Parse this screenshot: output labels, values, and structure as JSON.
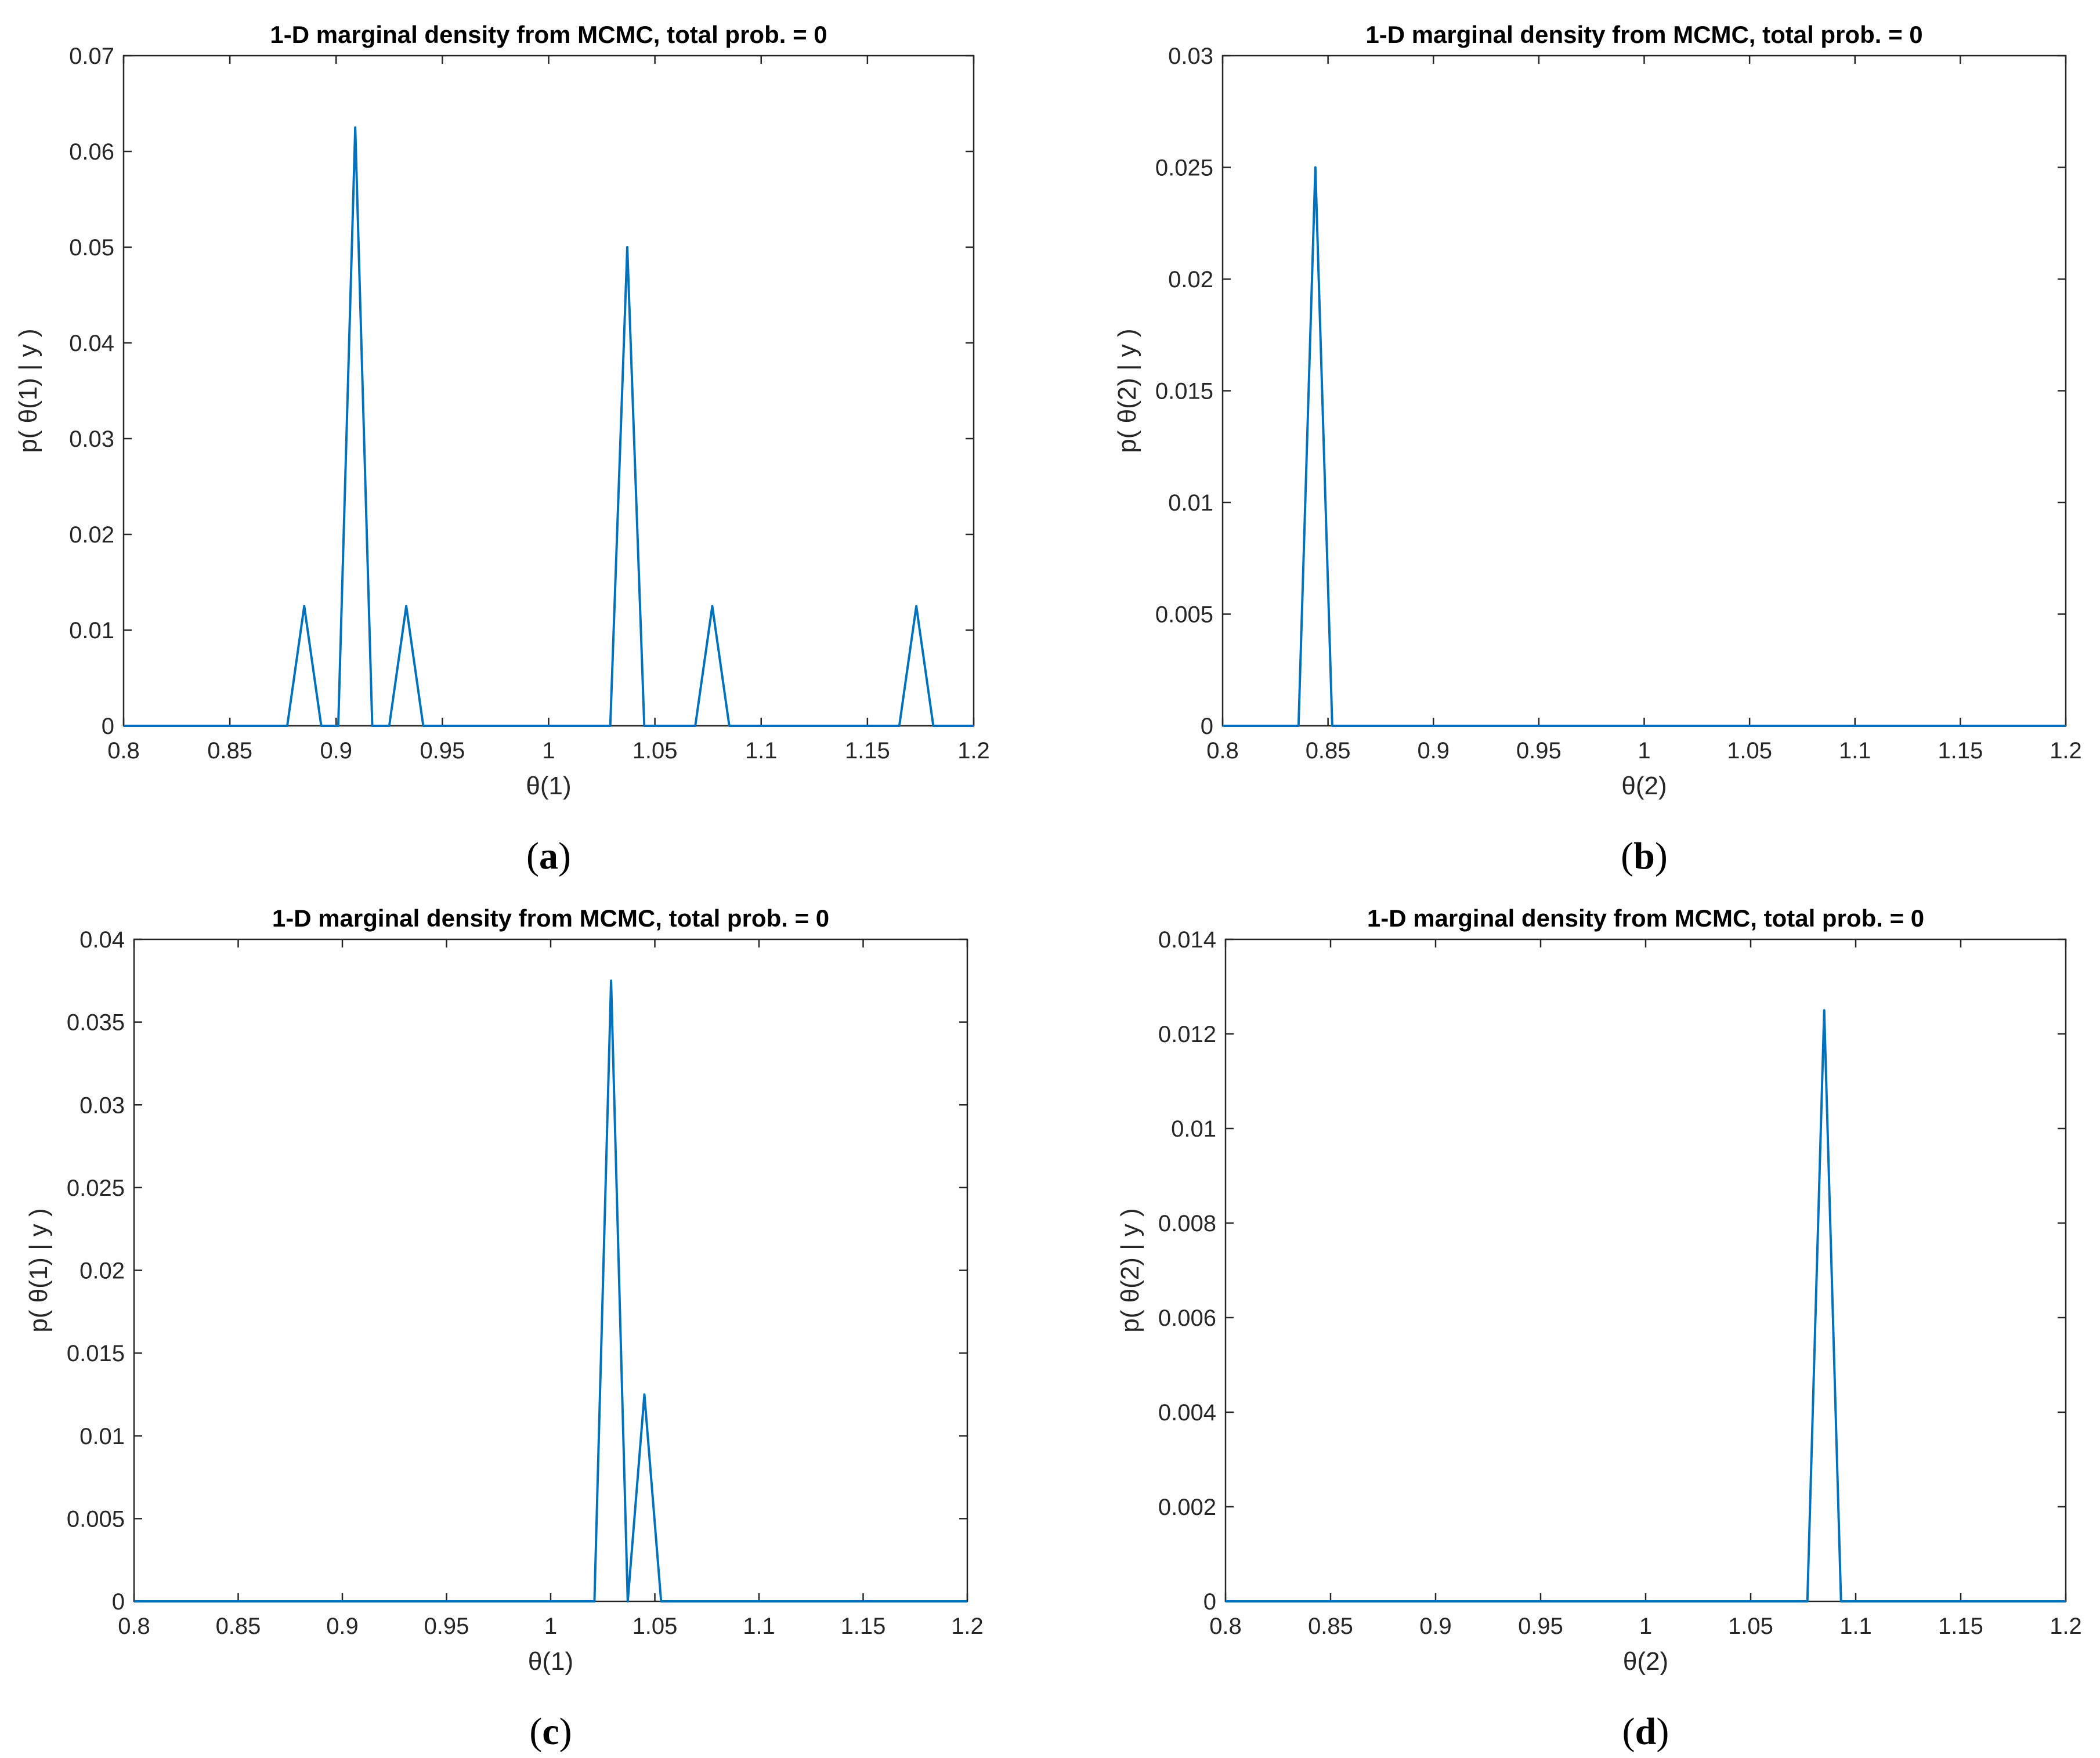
{
  "chart_data": [
    {
      "type": "line",
      "panel_label": "a",
      "title": "1-D marginal density from MCMC, total prob. = 0",
      "xlabel": "θ(1)",
      "ylabel": "p( θ(1) | y )",
      "xlim": [
        0.8,
        1.2
      ],
      "ylim": [
        0,
        0.07
      ],
      "xticks": [
        0.8,
        0.85,
        0.9,
        0.95,
        1,
        1.05,
        1.1,
        1.15,
        1.2
      ],
      "xtick_labels": [
        "0.8",
        "0.85",
        "0.9",
        "0.95",
        "1",
        "1.05",
        "1.1",
        "1.15",
        "1.2"
      ],
      "yticks": [
        0,
        0.01,
        0.02,
        0.03,
        0.04,
        0.05,
        0.06,
        0.07
      ],
      "ytick_labels": [
        "0",
        "0.01",
        "0.02",
        "0.03",
        "0.04",
        "0.05",
        "0.06",
        "0.07"
      ],
      "color": "#0072BD",
      "grid": false,
      "series": [
        {
          "x": [
            0.8,
            0.877,
            0.885,
            0.893,
            0.901,
            0.909,
            0.917,
            0.925,
            0.933,
            0.941,
            1.029,
            1.037,
            1.045,
            1.069,
            1.077,
            1.085,
            1.165,
            1.173,
            1.181,
            1.2
          ],
          "y": [
            0,
            0,
            0.0125,
            0,
            0,
            0.0625,
            0,
            0,
            0.0125,
            0,
            0,
            0.05,
            0,
            0,
            0.0125,
            0,
            0,
            0.0125,
            0,
            0
          ]
        }
      ]
    },
    {
      "type": "line",
      "panel_label": "b",
      "title": "1-D marginal density from MCMC, total prob. = 0",
      "xlabel": "θ(2)",
      "ylabel": "p( θ(2) | y )",
      "xlim": [
        0.8,
        1.2
      ],
      "ylim": [
        0,
        0.03
      ],
      "xticks": [
        0.8,
        0.85,
        0.9,
        0.95,
        1,
        1.05,
        1.1,
        1.15,
        1.2
      ],
      "xtick_labels": [
        "0.8",
        "0.85",
        "0.9",
        "0.95",
        "1",
        "1.05",
        "1.1",
        "1.15",
        "1.2"
      ],
      "yticks": [
        0,
        0.005,
        0.01,
        0.015,
        0.02,
        0.025,
        0.03
      ],
      "ytick_labels": [
        "0",
        "0.005",
        "0.01",
        "0.015",
        "0.02",
        "0.025",
        "0.03"
      ],
      "color": "#0072BD",
      "grid": false,
      "series": [
        {
          "x": [
            0.8,
            0.836,
            0.844,
            0.852,
            1.2
          ],
          "y": [
            0,
            0,
            0.025,
            0,
            0
          ]
        }
      ]
    },
    {
      "type": "line",
      "panel_label": "c",
      "title": "1-D marginal density from MCMC, total prob. = 0",
      "xlabel": "θ(1)",
      "ylabel": "p( θ(1) | y )",
      "xlim": [
        0.8,
        1.2
      ],
      "ylim": [
        0,
        0.04
      ],
      "xticks": [
        0.8,
        0.85,
        0.9,
        0.95,
        1,
        1.05,
        1.1,
        1.15,
        1.2
      ],
      "xtick_labels": [
        "0.8",
        "0.85",
        "0.9",
        "0.95",
        "1",
        "1.05",
        "1.1",
        "1.15",
        "1.2"
      ],
      "yticks": [
        0,
        0.005,
        0.01,
        0.015,
        0.02,
        0.025,
        0.03,
        0.035,
        0.04
      ],
      "ytick_labels": [
        "0",
        "0.005",
        "0.01",
        "0.015",
        "0.02",
        "0.025",
        "0.03",
        "0.035",
        "0.04"
      ],
      "color": "#0072BD",
      "grid": false,
      "series": [
        {
          "x": [
            0.8,
            1.021,
            1.029,
            1.037,
            1.045,
            1.053,
            1.2
          ],
          "y": [
            0,
            0,
            0.0375,
            0,
            0.0125,
            0,
            0
          ]
        }
      ]
    },
    {
      "type": "line",
      "panel_label": "d",
      "title": "1-D marginal density from MCMC, total prob. = 0",
      "xlabel": "θ(2)",
      "ylabel": "p( θ(2) | y )",
      "xlim": [
        0.8,
        1.2
      ],
      "ylim": [
        0,
        0.014
      ],
      "xticks": [
        0.8,
        0.85,
        0.9,
        0.95,
        1,
        1.05,
        1.1,
        1.15,
        1.2
      ],
      "xtick_labels": [
        "0.8",
        "0.85",
        "0.9",
        "0.95",
        "1",
        "1.05",
        "1.1",
        "1.15",
        "1.2"
      ],
      "yticks": [
        0,
        0.002,
        0.004,
        0.006,
        0.008,
        0.01,
        0.012,
        0.014
      ],
      "ytick_labels": [
        "0",
        "0.002",
        "0.004",
        "0.006",
        "0.008",
        "0.01",
        "0.012",
        "0.014"
      ],
      "color": "#0072BD",
      "grid": false,
      "series": [
        {
          "x": [
            0.8,
            1.077,
            1.085,
            1.093,
            1.2
          ],
          "y": [
            0,
            0,
            0.0125,
            0,
            0
          ]
        }
      ]
    }
  ]
}
